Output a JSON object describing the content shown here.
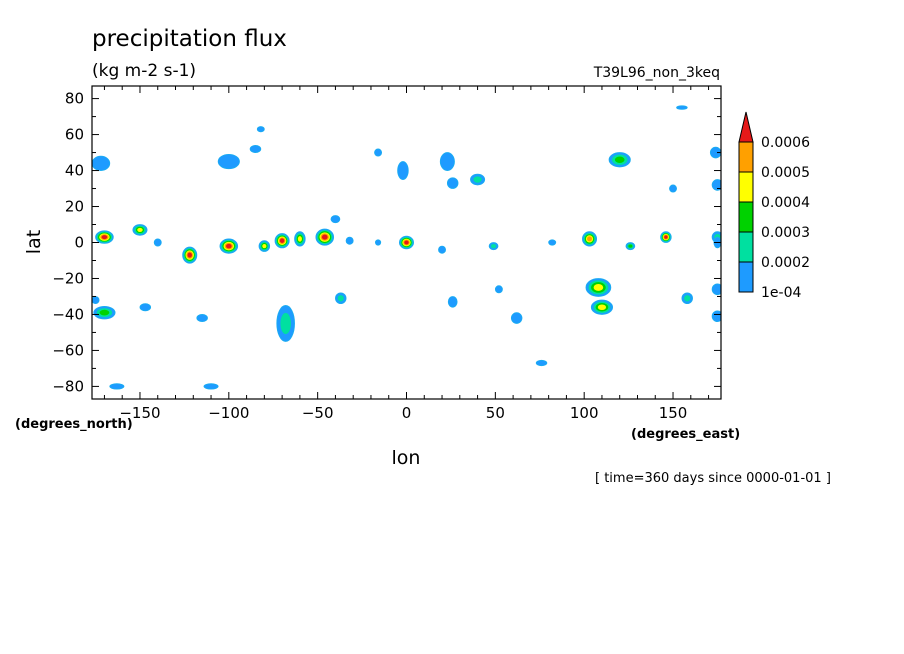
{
  "chart_data": {
    "type": "heatmap",
    "title": "precipitation flux",
    "subtitle": "(kg m-2 s-1)",
    "run_label": "T39L96_non_3keq",
    "xlabel": "lon",
    "ylabel": "lat",
    "x_unit_label": "(degrees_east)",
    "y_unit_label": "(degrees_north)",
    "time_label": "[ time=360 days since 0000-01-01 ]",
    "xlim": [
      -177,
      177
    ],
    "ylim": [
      -87,
      87
    ],
    "x_ticks": [
      -150,
      -100,
      -50,
      0,
      50,
      100,
      150
    ],
    "y_ticks": [
      -80,
      -60,
      -40,
      -20,
      0,
      20,
      40,
      60,
      80
    ],
    "grid": false,
    "legend": {
      "placement": "right",
      "levels": [
        "1e-04",
        "0.0002",
        "0.0003",
        "0.0004",
        "0.0005",
        "0.0006"
      ],
      "colors": [
        "#1e9bff",
        "#00e0a0",
        "#00d200",
        "#ffff00",
        "#ffa000",
        "#e61919"
      ]
    },
    "contour_color": "#1aaef0",
    "features": [
      {
        "lon": -170,
        "lat": 3,
        "rx": 5,
        "ry": 3.5,
        "peak": 6
      },
      {
        "lon": -150,
        "lat": 7,
        "rx": 4,
        "ry": 3,
        "peak": 4
      },
      {
        "lon": -140,
        "lat": 0,
        "rx": 2,
        "ry": 2,
        "peak": 1
      },
      {
        "lon": -122,
        "lat": -7,
        "rx": 4,
        "ry": 4.5,
        "peak": 6
      },
      {
        "lon": -100,
        "lat": -2,
        "rx": 5,
        "ry": 4,
        "peak": 6
      },
      {
        "lon": -80,
        "lat": -2,
        "rx": 3,
        "ry": 3,
        "peak": 4
      },
      {
        "lon": -70,
        "lat": 1,
        "rx": 4,
        "ry": 4,
        "peak": 6
      },
      {
        "lon": -60,
        "lat": 2,
        "rx": 3,
        "ry": 4,
        "peak": 4
      },
      {
        "lon": -46,
        "lat": 3,
        "rx": 5,
        "ry": 4.5,
        "peak": 6
      },
      {
        "lon": -32,
        "lat": 1,
        "rx": 2,
        "ry": 2,
        "peak": 1
      },
      {
        "lon": -16,
        "lat": 0,
        "rx": 1.5,
        "ry": 1.5,
        "peak": 1
      },
      {
        "lon": 0,
        "lat": 0,
        "rx": 4,
        "ry": 3.5,
        "peak": 6
      },
      {
        "lon": 20,
        "lat": -4,
        "rx": 2,
        "ry": 2,
        "peak": 1
      },
      {
        "lon": 49,
        "lat": -2,
        "rx": 2.5,
        "ry": 2,
        "peak": 2
      },
      {
        "lon": 82,
        "lat": 0,
        "rx": 2,
        "ry": 1.5,
        "peak": 1
      },
      {
        "lon": 103,
        "lat": 2,
        "rx": 4,
        "ry": 4,
        "peak": 5
      },
      {
        "lon": 126,
        "lat": -2,
        "rx": 2.5,
        "ry": 2,
        "peak": 3
      },
      {
        "lon": 146,
        "lat": 3,
        "rx": 3,
        "ry": 3,
        "peak": 6
      },
      {
        "lon": 175,
        "lat": 3,
        "rx": 3,
        "ry": 3,
        "peak": 2
      },
      {
        "lon": 108,
        "lat": -25,
        "rx": 7,
        "ry": 5,
        "peak": 4
      },
      {
        "lon": 110,
        "lat": -36,
        "rx": 6,
        "ry": 4,
        "peak": 4
      },
      {
        "lon": 158,
        "lat": -31,
        "rx": 3,
        "ry": 3,
        "peak": 2
      },
      {
        "lon": -170,
        "lat": -39,
        "rx": 6,
        "ry": 3.5,
        "peak": 3
      },
      {
        "lon": -68,
        "lat": -45,
        "rx": 5,
        "ry": 10,
        "peak": 2
      },
      {
        "lon": -37,
        "lat": -31,
        "rx": 3,
        "ry": 3,
        "peak": 2
      },
      {
        "lon": 26,
        "lat": -33,
        "rx": 2.5,
        "ry": 3,
        "peak": 1
      },
      {
        "lon": 62,
        "lat": -42,
        "rx": 3,
        "ry": 3,
        "peak": 1
      },
      {
        "lon": 52,
        "lat": -26,
        "rx": 2,
        "ry": 2,
        "peak": 1
      },
      {
        "lon": -147,
        "lat": -36,
        "rx": 3,
        "ry": 2,
        "peak": 1
      },
      {
        "lon": -172,
        "lat": 44,
        "rx": 5,
        "ry": 4,
        "peak": 1
      },
      {
        "lon": -2,
        "lat": 40,
        "rx": 3,
        "ry": 5,
        "peak": 1
      },
      {
        "lon": 23,
        "lat": 45,
        "rx": 4,
        "ry": 5,
        "peak": 1
      },
      {
        "lon": 40,
        "lat": 35,
        "rx": 4,
        "ry": 3,
        "peak": 2
      },
      {
        "lon": 26,
        "lat": 33,
        "rx": 3,
        "ry": 3,
        "peak": 1
      },
      {
        "lon": 120,
        "lat": 46,
        "rx": 6,
        "ry": 4,
        "peak": 3
      },
      {
        "lon": 174,
        "lat": 50,
        "rx": 3,
        "ry": 3,
        "peak": 1
      },
      {
        "lon": -100,
        "lat": 45,
        "rx": 6,
        "ry": 4,
        "peak": 1
      },
      {
        "lon": -85,
        "lat": 52,
        "rx": 3,
        "ry": 2,
        "peak": 1
      },
      {
        "lon": -16,
        "lat": 50,
        "rx": 2,
        "ry": 2,
        "peak": 1
      },
      {
        "lon": -40,
        "lat": 13,
        "rx": 2.5,
        "ry": 2,
        "peak": 1
      },
      {
        "lon": 175,
        "lat": 32,
        "rx": 3,
        "ry": 3,
        "peak": 1
      },
      {
        "lon": 150,
        "lat": 30,
        "rx": 2,
        "ry": 2,
        "peak": 1
      },
      {
        "lon": 175,
        "lat": -26,
        "rx": 3,
        "ry": 3,
        "peak": 1
      },
      {
        "lon": 175,
        "lat": -41,
        "rx": 3,
        "ry": 3,
        "peak": 1
      },
      {
        "lon": -110,
        "lat": -80,
        "rx": 4,
        "ry": 1.5,
        "peak": 1
      },
      {
        "lon": -163,
        "lat": -80,
        "rx": 4,
        "ry": 1.5,
        "peak": 1
      },
      {
        "lon": 76,
        "lat": -67,
        "rx": 3,
        "ry": 1.5,
        "peak": 1
      },
      {
        "lon": 155,
        "lat": 75,
        "rx": 3,
        "ry": 1,
        "peak": 1
      },
      {
        "lon": -82,
        "lat": 63,
        "rx": 2,
        "ry": 1.5,
        "peak": 1
      },
      {
        "lon": -115,
        "lat": -42,
        "rx": 3,
        "ry": 2,
        "peak": 1
      },
      {
        "lon": 175,
        "lat": 0,
        "rx": 2,
        "ry": 3,
        "peak": 1
      },
      {
        "lon": -175,
        "lat": -32,
        "rx": 2,
        "ry": 2,
        "peak": 1
      }
    ]
  }
}
